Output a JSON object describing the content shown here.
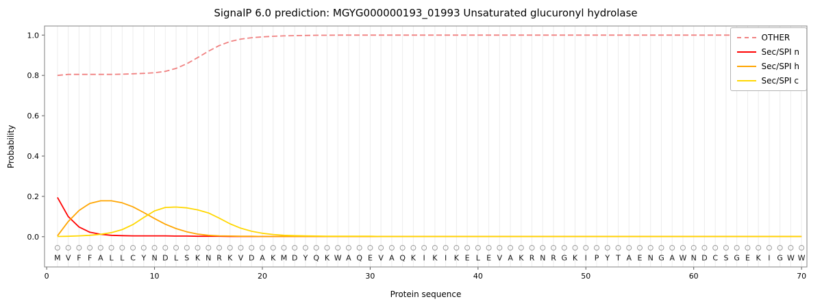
{
  "title": "SignalP 6.0 prediction: MGYG000000193_01993 Unsaturated glucuronyl hydrolase",
  "chart_data": {
    "type": "line",
    "title": "SignalP 6.0 prediction: MGYG000000193_01993 Unsaturated glucuronyl hydrolase",
    "xlabel": "Protein sequence",
    "ylabel": "Probability",
    "xlim": [
      -0.2,
      70.5
    ],
    "ylim": [
      -0.15,
      1.045
    ],
    "x_ticks": [
      0,
      10,
      20,
      30,
      40,
      50,
      60,
      70
    ],
    "y_ticks": [
      "0.0",
      "0.2",
      "0.4",
      "0.6",
      "0.8",
      "1.0"
    ],
    "grid": "vertical line at every residue position",
    "legend_position": "upper right",
    "sequence": "MVFFALLCYNDLSKNRKVDAKMDYQKWAQEVAQKIKIKELEVAKRNRGKIPYTAENGAWNDCSGEKIGWW",
    "marker_row_symbol": "open-circle",
    "series": [
      {
        "name": "OTHER",
        "color": "#f08080",
        "dashed": true,
        "values": [
          0.8,
          0.805,
          0.805,
          0.805,
          0.805,
          0.805,
          0.806,
          0.808,
          0.81,
          0.813,
          0.82,
          0.835,
          0.858,
          0.888,
          0.92,
          0.948,
          0.968,
          0.98,
          0.987,
          0.991,
          0.994,
          0.996,
          0.997,
          0.998,
          0.999,
          0.999,
          1.0,
          1.0,
          1.0,
          1.0,
          1.0,
          1.0,
          1.0,
          1.0,
          1.0,
          1.0,
          1.0,
          1.0,
          1.0,
          1.0,
          1.0,
          1.0,
          1.0,
          1.0,
          1.0,
          1.0,
          1.0,
          1.0,
          1.0,
          1.0,
          1.0,
          1.0,
          1.0,
          1.0,
          1.0,
          1.0,
          1.0,
          1.0,
          1.0,
          1.0,
          1.0,
          1.0,
          1.0,
          1.0,
          1.0,
          1.0,
          1.0,
          1.0,
          1.0,
          1.0
        ]
      },
      {
        "name": "Sec/SPI n",
        "color": "#ff0000",
        "dashed": false,
        "values": [
          0.195,
          0.1,
          0.048,
          0.022,
          0.012,
          0.007,
          0.005,
          0.004,
          0.004,
          0.004,
          0.004,
          0.003,
          0.003,
          0.002,
          0.002,
          0.002,
          0.001,
          0.001,
          0.001,
          0.001,
          0.001,
          0.001,
          0.001,
          0.001,
          0.001,
          0.001,
          0.001,
          0.001,
          0.001,
          0.001,
          0.001,
          0.001,
          0.001,
          0.001,
          0.001,
          0.001,
          0.001,
          0.001,
          0.001,
          0.001,
          0.001,
          0.001,
          0.001,
          0.001,
          0.001,
          0.001,
          0.001,
          0.001,
          0.001,
          0.001,
          0.001,
          0.001,
          0.001,
          0.001,
          0.001,
          0.001,
          0.001,
          0.001,
          0.001,
          0.001,
          0.001,
          0.001,
          0.001,
          0.001,
          0.001,
          0.001,
          0.001,
          0.001,
          0.001,
          0.001
        ]
      },
      {
        "name": "Sec/SPI h",
        "color": "#ffa500",
        "dashed": false,
        "values": [
          0.004,
          0.075,
          0.13,
          0.165,
          0.178,
          0.178,
          0.168,
          0.148,
          0.12,
          0.09,
          0.062,
          0.04,
          0.024,
          0.013,
          0.007,
          0.004,
          0.003,
          0.002,
          0.002,
          0.001,
          0.001,
          0.001,
          0.001,
          0.001,
          0.001,
          0.001,
          0.001,
          0.001,
          0.001,
          0.001,
          0.001,
          0.001,
          0.001,
          0.001,
          0.001,
          0.001,
          0.001,
          0.001,
          0.001,
          0.001,
          0.001,
          0.001,
          0.001,
          0.001,
          0.001,
          0.001,
          0.001,
          0.001,
          0.001,
          0.001,
          0.001,
          0.001,
          0.001,
          0.001,
          0.001,
          0.001,
          0.001,
          0.001,
          0.001,
          0.001,
          0.001,
          0.001,
          0.001,
          0.001,
          0.001,
          0.001,
          0.001,
          0.001,
          0.001,
          0.001
        ]
      },
      {
        "name": "Sec/SPI c",
        "color": "#ffd700",
        "dashed": false,
        "values": [
          0.001,
          0.002,
          0.004,
          0.007,
          0.012,
          0.02,
          0.035,
          0.06,
          0.095,
          0.128,
          0.145,
          0.147,
          0.143,
          0.133,
          0.118,
          0.092,
          0.064,
          0.042,
          0.027,
          0.017,
          0.011,
          0.007,
          0.005,
          0.004,
          0.003,
          0.002,
          0.002,
          0.002,
          0.002,
          0.002,
          0.001,
          0.001,
          0.001,
          0.001,
          0.001,
          0.001,
          0.001,
          0.001,
          0.001,
          0.001,
          0.001,
          0.001,
          0.001,
          0.001,
          0.001,
          0.001,
          0.001,
          0.001,
          0.001,
          0.001,
          0.001,
          0.001,
          0.001,
          0.001,
          0.001,
          0.001,
          0.001,
          0.001,
          0.001,
          0.001,
          0.001,
          0.001,
          0.001,
          0.001,
          0.001,
          0.001,
          0.001,
          0.001,
          0.001,
          0.001
        ]
      }
    ]
  }
}
